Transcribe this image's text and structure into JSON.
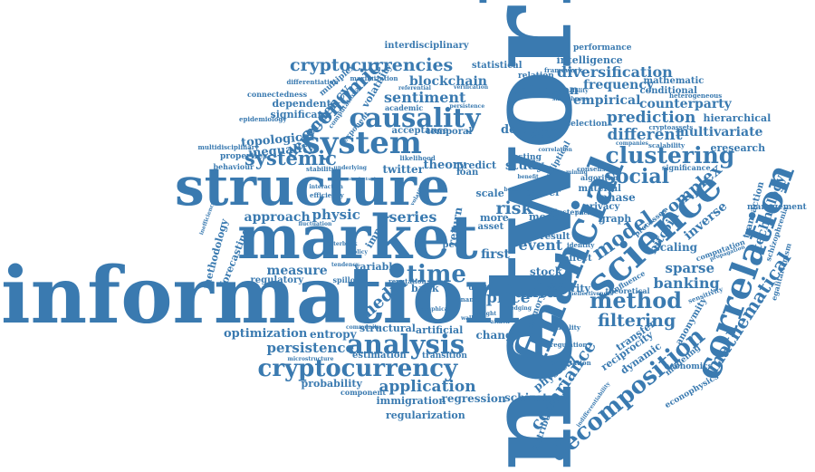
{
  "color": "#3a7ab0",
  "words": [
    {
      "id": "network",
      "text": "network"
    },
    {
      "id": "information",
      "text": "information"
    },
    {
      "id": "market",
      "text": "market"
    },
    {
      "id": "structure",
      "text": "structure"
    },
    {
      "id": "financial",
      "text": "financial"
    },
    {
      "id": "science",
      "text": "science"
    },
    {
      "id": "correlation",
      "text": "correlation"
    },
    {
      "id": "system",
      "text": "system"
    },
    {
      "id": "causality",
      "text": "causality"
    },
    {
      "id": "analysis",
      "text": "analysis"
    },
    {
      "id": "cryptocurrency",
      "text": "cryptocurrency"
    },
    {
      "id": "decomposition",
      "text": "decomposition"
    },
    {
      "id": "clustering",
      "text": "clustering"
    },
    {
      "id": "time",
      "text": "time"
    },
    {
      "id": "method",
      "text": "method"
    },
    {
      "id": "systemic",
      "text": "systemic"
    },
    {
      "id": "cryptocurrencies",
      "text": "cryptocurrencies"
    },
    {
      "id": "model",
      "text": "model"
    },
    {
      "id": "social",
      "text": "social"
    },
    {
      "id": "mathematical",
      "text": "mathematical"
    },
    {
      "id": "economic",
      "text": "economic"
    },
    {
      "id": "diversification",
      "text": "diversification"
    },
    {
      "id": "prediction",
      "text": "prediction"
    },
    {
      "id": "different",
      "text": "different"
    },
    {
      "id": "filtering",
      "text": "filtering"
    },
    {
      "id": "data",
      "text": "data"
    },
    {
      "id": "banking",
      "text": "banking"
    },
    {
      "id": "sparse",
      "text": "sparse"
    },
    {
      "id": "complex",
      "text": "complex"
    },
    {
      "id": "technology",
      "text": "technology"
    },
    {
      "id": "covariance",
      "text": "covariance"
    },
    {
      "id": "application",
      "text": "application"
    },
    {
      "id": "media",
      "text": "media"
    },
    {
      "id": "series",
      "text": "series"
    },
    {
      "id": "risk",
      "text": "risk"
    },
    {
      "id": "event",
      "text": "event"
    },
    {
      "id": "persistence",
      "text": "persistence"
    },
    {
      "id": "sentiment",
      "text": "sentiment"
    },
    {
      "id": "blockchain",
      "text": "blockchain"
    },
    {
      "id": "dependency",
      "text": "dependency"
    },
    {
      "id": "empirical",
      "text": "empirical"
    },
    {
      "id": "frequency",
      "text": "frequency"
    },
    {
      "id": "counterparty",
      "text": "counterparty"
    },
    {
      "id": "multivariate",
      "text": "multivariate"
    },
    {
      "id": "physic",
      "text": "physic"
    },
    {
      "id": "approach",
      "text": "approach"
    },
    {
      "id": "measure",
      "text": "measure"
    },
    {
      "id": "price",
      "text": "price"
    },
    {
      "id": "theory",
      "text": "theory"
    },
    {
      "id": "study",
      "text": "study"
    },
    {
      "id": "twitter",
      "text": "twitter"
    },
    {
      "id": "regression",
      "text": "regression"
    },
    {
      "id": "regularization",
      "text": "regularization"
    },
    {
      "id": "immigration",
      "text": "immigration"
    },
    {
      "id": "probability",
      "text": "probability"
    },
    {
      "id": "optimization",
      "text": "optimization"
    },
    {
      "id": "entropy",
      "text": "entropy"
    },
    {
      "id": "change",
      "text": "change"
    },
    {
      "id": "schizotypy",
      "text": "schizotypy"
    },
    {
      "id": "physical",
      "text": "physical"
    },
    {
      "id": "transfer",
      "text": "transfer"
    },
    {
      "id": "reciprocity",
      "text": "reciprocity"
    },
    {
      "id": "dynamic",
      "text": "dynamic"
    },
    {
      "id": "bitcoin",
      "text": "bitcoin"
    },
    {
      "id": "inverse",
      "text": "inverse"
    },
    {
      "id": "scaling",
      "text": "scaling"
    },
    {
      "id": "phase",
      "text": "phase"
    },
    {
      "id": "graph",
      "text": "graph"
    },
    {
      "id": "hierarchical",
      "text": "hierarchical"
    },
    {
      "id": "conditional",
      "text": "conditional"
    },
    {
      "id": "mathematic",
      "text": "mathematic"
    },
    {
      "id": "intelligence",
      "text": "intelligence"
    },
    {
      "id": "performance",
      "text": "performance"
    },
    {
      "id": "interdisciplinary",
      "text": "interdisciplinary"
    },
    {
      "id": "statistical",
      "text": "statistical"
    },
    {
      "id": "detection",
      "text": "detection"
    },
    {
      "id": "relation",
      "text": "relation"
    },
    {
      "id": "framework",
      "text": "framework"
    },
    {
      "id": "topological",
      "text": "topological"
    },
    {
      "id": "inequality",
      "text": "inequality"
    },
    {
      "id": "dependent",
      "text": "dependent"
    },
    {
      "id": "significant",
      "text": "significant"
    },
    {
      "id": "connectedness",
      "text": "connectedness"
    },
    {
      "id": "forecasting",
      "text": "forecasting"
    },
    {
      "id": "methodology",
      "text": "methodology"
    },
    {
      "id": "regulatory",
      "text": "regulatory"
    },
    {
      "id": "properties",
      "text": "properties"
    },
    {
      "id": "multidisciplinary",
      "text": "multidisciplinary"
    },
    {
      "id": "behaviour",
      "text": "behaviour"
    },
    {
      "id": "stability",
      "text": "stability"
    },
    {
      "id": "acceptance",
      "text": "acceptance"
    },
    {
      "id": "temporal",
      "text": "temporal"
    },
    {
      "id": "academic",
      "text": "academic"
    },
    {
      "id": "default",
      "text": "default"
    },
    {
      "id": "predict",
      "text": "predict"
    },
    {
      "id": "testing",
      "text": "testing"
    },
    {
      "id": "scale",
      "text": "scale"
    },
    {
      "id": "loan",
      "text": "loan"
    },
    {
      "id": "career",
      "text": "career"
    },
    {
      "id": "mode",
      "text": "mode"
    },
    {
      "id": "more",
      "text": "more"
    },
    {
      "id": "asset",
      "text": "asset"
    },
    {
      "id": "first",
      "text": "first"
    },
    {
      "id": "stock",
      "text": "stock"
    },
    {
      "id": "order",
      "text": "order"
    },
    {
      "id": "security",
      "text": "security"
    },
    {
      "id": "bank",
      "text": "bank"
    },
    {
      "id": "peer",
      "text": "peer"
    },
    {
      "id": "return",
      "text": "return"
    },
    {
      "id": "impact",
      "text": "impact"
    },
    {
      "id": "variable",
      "text": "variable"
    },
    {
      "id": "spillover",
      "text": "spillover"
    },
    {
      "id": "structural",
      "text": "structural"
    },
    {
      "id": "artificial",
      "text": "artificial"
    },
    {
      "id": "estimation",
      "text": "estimation"
    },
    {
      "id": "transition",
      "text": "transition"
    },
    {
      "id": "component",
      "text": "component"
    },
    {
      "id": "distribution",
      "text": "distribution"
    },
    {
      "id": "memory",
      "text": "memory"
    },
    {
      "id": "economics",
      "text": "economics"
    },
    {
      "id": "econophysics",
      "text": "econophysics"
    },
    {
      "id": "anonymity",
      "text": "anonymity"
    },
    {
      "id": "transaction",
      "text": "transaction"
    },
    {
      "id": "management",
      "text": "management"
    },
    {
      "id": "eresearch",
      "text": "eresearch"
    },
    {
      "id": "volatility",
      "text": "volatility"
    },
    {
      "id": "epidemiology",
      "text": "epidemiology"
    },
    {
      "id": "selection",
      "text": "selection"
    },
    {
      "id": "identity",
      "text": "identity"
    },
    {
      "id": "elliptical",
      "text": "elliptical"
    },
    {
      "id": "multiplex",
      "text": "multiplex"
    },
    {
      "id": "exponent",
      "text": "exponent"
    },
    {
      "id": "computational",
      "text": "computational"
    },
    {
      "id": "maximization",
      "text": "maximization"
    },
    {
      "id": "differentiation",
      "text": "differentiation"
    },
    {
      "id": "efficiency",
      "text": "efficiency"
    },
    {
      "id": "fluctuation",
      "text": "fluctuation"
    },
    {
      "id": "reputation",
      "text": "reputation"
    },
    {
      "id": "digital",
      "text": "digital"
    },
    {
      "id": "finance",
      "text": "finance"
    },
    {
      "id": "microstructure",
      "text": "microstructure"
    },
    {
      "id": "community",
      "text": "community"
    },
    {
      "id": "cluster",
      "text": "cluster"
    },
    {
      "id": "result",
      "text": "result"
    },
    {
      "id": "effect",
      "text": "effect"
    },
    {
      "id": "material",
      "text": "material"
    },
    {
      "id": "privacy",
      "text": "privacy"
    },
    {
      "id": "consensus",
      "text": "consensus"
    },
    {
      "id": "algorithm",
      "text": "algorithm"
    },
    {
      "id": "significance",
      "text": "significance"
    },
    {
      "id": "scalability",
      "text": "scalability"
    },
    {
      "id": "heterogeneous",
      "text": "heterogeneous"
    },
    {
      "id": "cryptoassets",
      "text": "cryptoassets"
    },
    {
      "id": "companies",
      "text": "companies"
    },
    {
      "id": "schizophrenia",
      "text": "schizophrenia"
    },
    {
      "id": "egalitarianism",
      "text": "egalitarianism"
    },
    {
      "id": "modeling",
      "text": "modeling"
    },
    {
      "id": "theoretical",
      "text": "theoretical"
    },
    {
      "id": "criticality",
      "text": "criticality"
    },
    {
      "id": "expectation",
      "text": "expectation"
    },
    {
      "id": "regulation",
      "text": "regulation"
    },
    {
      "id": "indifferentiability",
      "text": "indifferentiability"
    },
    {
      "id": "sensitivity",
      "text": "sensitivity"
    },
    {
      "id": "processes",
      "text": "processes"
    },
    {
      "id": "influence",
      "text": "influence"
    },
    {
      "id": "computation",
      "text": "computation"
    },
    {
      "id": "propagation",
      "text": "propagation"
    },
    {
      "id": "ineffectiveness",
      "text": "ineffectiveness"
    },
    {
      "id": "likelihood",
      "text": "likelihood"
    },
    {
      "id": "underlying",
      "text": "underlying"
    },
    {
      "id": "interaction",
      "text": "interaction"
    },
    {
      "id": "multilayer",
      "text": "multilayer"
    },
    {
      "id": "regional",
      "text": "regional"
    },
    {
      "id": "verification",
      "text": "verification"
    },
    {
      "id": "referential",
      "text": "referential"
    },
    {
      "id": "persistence2",
      "text": "persistence"
    },
    {
      "id": "correlation2",
      "text": "correlation"
    },
    {
      "id": "profitability",
      "text": "profitability"
    },
    {
      "id": "smoothness",
      "text": "smoothness"
    },
    {
      "id": "benefit",
      "text": "benefit"
    },
    {
      "id": "mining",
      "text": "mining"
    },
    {
      "id": "pricing",
      "text": "pricing"
    },
    {
      "id": "better",
      "text": "better"
    },
    {
      "id": "hedging",
      "text": "hedging"
    },
    {
      "id": "weight",
      "text": "weight"
    },
    {
      "id": "wallet",
      "text": "wallet"
    },
    {
      "id": "attack",
      "text": "attack"
    },
    {
      "id": "graphical",
      "text": "graphical"
    },
    {
      "id": "tendency",
      "text": "tendency"
    },
    {
      "id": "interbank",
      "text": "interbank"
    },
    {
      "id": "policy",
      "text": "policy"
    },
    {
      "id": "inefficiency",
      "text": "inefficiency"
    },
    {
      "id": "counterfactual",
      "text": "counterfactual"
    },
    {
      "id": "volatility2",
      "text": "volatility"
    }
  ]
}
